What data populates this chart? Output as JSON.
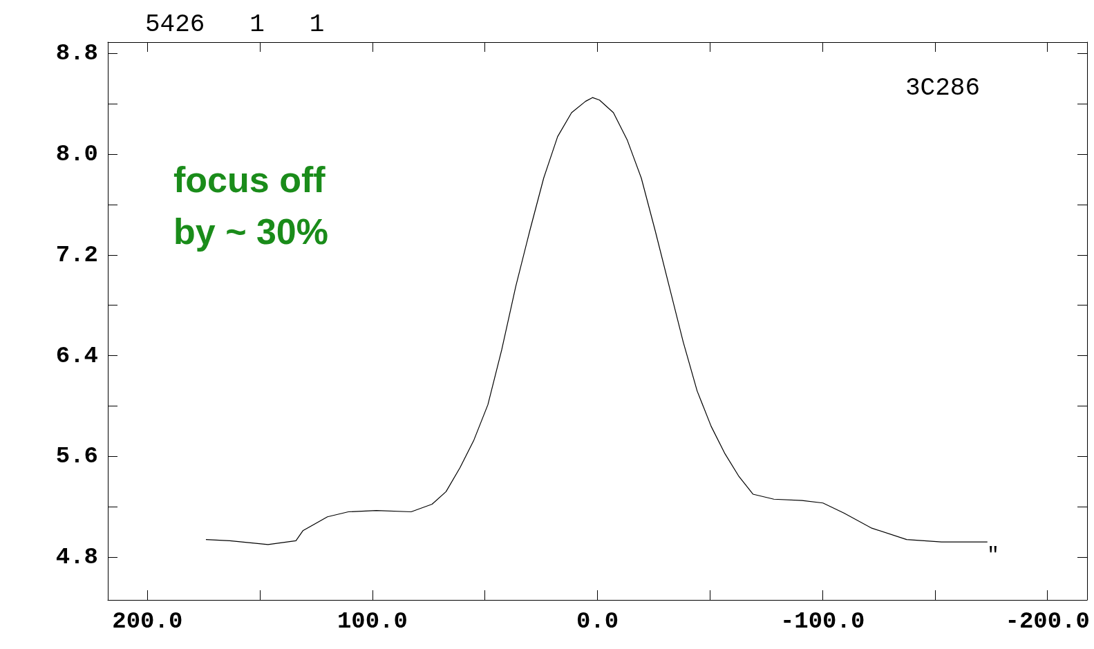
{
  "chart_data": {
    "type": "line",
    "marker": "none",
    "line_style": "solid",
    "grid": false,
    "annotations": [
      "5426   1   1",
      "3C286",
      "focus off\nby ~ 30%",
      "\""
    ],
    "xlim": [
      217.6,
      -217.6
    ],
    "xticks": [
      {
        "value": 200,
        "label": "200.0"
      },
      {
        "value": 150,
        "label": null
      },
      {
        "value": 100,
        "label": "100.0"
      },
      {
        "value": 50,
        "label": null
      },
      {
        "value": 0,
        "label": "0.0"
      },
      {
        "value": -50,
        "label": null
      },
      {
        "value": -100,
        "label": "-100.0"
      },
      {
        "value": -150,
        "label": null
      },
      {
        "value": -200,
        "label": "-200.0"
      }
    ],
    "ylim": [
      4.46,
      8.89
    ],
    "yticks": [
      {
        "value": 4.8,
        "label": "4.8"
      },
      {
        "value": 5.2,
        "label": null
      },
      {
        "value": 5.6,
        "label": "5.6"
      },
      {
        "value": 6.0,
        "label": null
      },
      {
        "value": 6.4,
        "label": "6.4"
      },
      {
        "value": 6.8,
        "label": null
      },
      {
        "value": 7.2,
        "label": "7.2"
      },
      {
        "value": 7.6,
        "label": null
      },
      {
        "value": 8.0,
        "label": "8.0"
      },
      {
        "value": 8.4,
        "label": null
      },
      {
        "value": 8.8,
        "label": "8.8"
      }
    ],
    "series": [
      {
        "color": "#000000",
        "x": [
          174,
          163.4,
          146.4,
          134,
          130.9,
          120,
          110.7,
          98.3,
          82.8,
          73.5,
          67.3,
          61.1,
          54.9,
          48.7,
          42.5,
          36.3,
          30.1,
          23.9,
          17.7,
          11.5,
          5.3,
          2.2,
          -0.9,
          -7.1,
          -13.3,
          -19.5,
          -25.7,
          -31.9,
          -38.1,
          -44.3,
          -50.5,
          -56.7,
          -62.9,
          -69.1,
          -78.4,
          -90.9,
          -100.2,
          -109.5,
          -121.9,
          -137.4,
          -152.9,
          -173.3
        ],
        "values": [
          4.94,
          4.93,
          4.9,
          4.93,
          5.01,
          5.12,
          5.16,
          5.17,
          5.16,
          5.22,
          5.32,
          5.51,
          5.73,
          6.01,
          6.45,
          6.95,
          7.39,
          7.81,
          8.14,
          8.33,
          8.42,
          8.45,
          8.43,
          8.33,
          8.11,
          7.81,
          7.39,
          6.95,
          6.51,
          6.12,
          5.84,
          5.62,
          5.44,
          5.3,
          5.26,
          5.25,
          5.23,
          5.15,
          5.03,
          4.94,
          4.92,
          4.92
        ]
      }
    ]
  }
}
